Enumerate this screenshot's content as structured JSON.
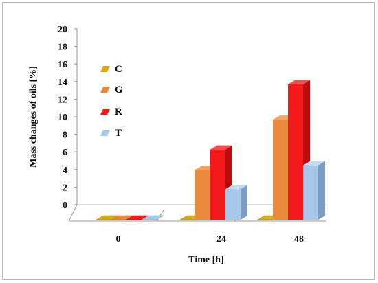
{
  "chart_data": {
    "type": "bar",
    "categories": [
      "0",
      "24",
      "48"
    ],
    "series": [
      {
        "name": "C",
        "values": [
          0,
          0,
          0
        ]
      },
      {
        "name": "G",
        "values": [
          0,
          5.7,
          11.4
        ]
      },
      {
        "name": "R",
        "values": [
          0,
          8.0,
          15.4
        ]
      },
      {
        "name": "T",
        "values": [
          0,
          3.5,
          6.2
        ]
      }
    ],
    "xlabel": "Time [h]",
    "ylabel": "Mass changes of oils [%]",
    "ylim": [
      0,
      20
    ],
    "yticks": [
      0,
      2,
      4,
      6,
      8,
      10,
      12,
      14,
      16,
      18,
      20
    ],
    "legend_position": "left",
    "grid": false,
    "colors": {
      "C": {
        "front": "#d7aa16",
        "top": "#e7c43c",
        "side": "#a98208"
      },
      "G": {
        "front": "#ec8a3c",
        "top": "#f3a364",
        "side": "#b7651f"
      },
      "R": {
        "front": "#f21a1a",
        "top": "#f64e4e",
        "side": "#b90d0d"
      },
      "T": {
        "front": "#a7c8ea",
        "top": "#c4dcf3",
        "side": "#7b9dc2"
      }
    }
  }
}
